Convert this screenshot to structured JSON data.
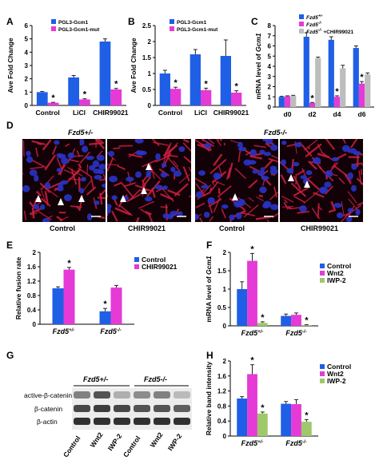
{
  "colors": {
    "blue": "#1f5fe6",
    "magenta": "#e53ad6",
    "green": "#9fc86a",
    "grey": "#bdbdbd",
    "err": "#222222",
    "stain_red": "#d02040",
    "stain_blue": "#2a33c8"
  },
  "panels": {
    "A": {
      "letter": "A"
    },
    "B": {
      "letter": "B"
    },
    "C": {
      "letter": "C"
    },
    "D": {
      "letter": "D",
      "group_left": "Fzd5+/-",
      "group_right": "Fzd5-/-",
      "captions": [
        "Control",
        "CHIR99021",
        "Control",
        "CHIR99021"
      ]
    },
    "E": {
      "letter": "E"
    },
    "F": {
      "letter": "F"
    },
    "G": {
      "letter": "G",
      "group_left": "Fzd5+/-",
      "group_right": "Fzd5-/-",
      "rows": [
        "active-β-catenin",
        "β-catenin",
        "β-actin"
      ],
      "lanes": [
        "Control",
        "Wnt2",
        "IWP-2",
        "Control",
        "Wnt2",
        "IWP-2"
      ]
    },
    "H": {
      "letter": "H"
    }
  },
  "chart_data": [
    {
      "panel": "A",
      "type": "bar",
      "ylabel": "Ave Fold Change",
      "ylim": [
        0,
        6
      ],
      "yticks": [
        0,
        1,
        2,
        3,
        4,
        5,
        6
      ],
      "categories": [
        "Control",
        "LiCl",
        "CHIR99021"
      ],
      "series": [
        {
          "name": "PGL3-Gcm1",
          "color": "blue",
          "values": [
            1.0,
            2.1,
            4.8
          ],
          "err": [
            0.05,
            0.15,
            0.2
          ]
        },
        {
          "name": "PGL3-Gcm1-mut",
          "color": "magenta",
          "values": [
            0.2,
            0.45,
            1.2
          ],
          "err": [
            0.03,
            0.05,
            0.08
          ]
        }
      ],
      "stars": [
        0,
        1,
        2
      ],
      "legend": "top-left"
    },
    {
      "panel": "B",
      "type": "bar",
      "ylabel": "Ave Fold Change",
      "ylim": [
        0,
        2.5
      ],
      "yticks": [
        0,
        0.5,
        1,
        1.5,
        2,
        2.5
      ],
      "categories": [
        "Control",
        "LiCl",
        "CHIR99021"
      ],
      "series": [
        {
          "name": "PGL3-Gcm1",
          "color": "blue",
          "values": [
            1.0,
            1.6,
            1.55
          ],
          "err": [
            0.1,
            0.15,
            0.5
          ]
        },
        {
          "name": "PGL3-Gcm1-mut",
          "color": "magenta",
          "values": [
            0.52,
            0.48,
            0.4
          ],
          "err": [
            0.05,
            0.06,
            0.06
          ]
        }
      ],
      "stars": [
        0,
        1,
        2
      ],
      "legend": "top-left"
    },
    {
      "panel": "C",
      "type": "bar",
      "ylabel": "mRNA level of Gcm1",
      "ylim": [
        0,
        8
      ],
      "yticks": [
        0,
        1,
        2,
        3,
        4,
        5,
        6,
        7,
        8
      ],
      "categories": [
        "d0",
        "d2",
        "d4",
        "d6"
      ],
      "series": [
        {
          "name": "Fzd5+/-",
          "color": "blue",
          "values": [
            1.0,
            6.9,
            6.6,
            5.8
          ],
          "err": [
            0.05,
            0.4,
            0.3,
            0.2
          ]
        },
        {
          "name": "Fzd5-/-",
          "color": "magenta",
          "values": [
            1.05,
            0.4,
            1.0,
            2.3
          ],
          "err": [
            0.05,
            0.05,
            0.1,
            0.2
          ]
        },
        {
          "name": "Fzd5-/- +CHIR99021",
          "color": "grey",
          "values": [
            1.1,
            4.8,
            3.8,
            3.2
          ],
          "err": [
            0.05,
            0.1,
            0.3,
            0.15
          ]
        }
      ],
      "stars": [
        1,
        2,
        3
      ],
      "legend": "top-left"
    },
    {
      "panel": "E",
      "type": "bar",
      "ylabel": "Relative fusion rate",
      "ylim": [
        0,
        2
      ],
      "yticks": [
        0,
        0.4,
        0.8,
        1.2,
        1.6,
        2
      ],
      "categories": [
        "Fzd5+/-",
        "Fzd5-/-"
      ],
      "series": [
        {
          "name": "Control",
          "color": "blue",
          "values": [
            1.0,
            0.36
          ],
          "err": [
            0.04,
            0.08
          ]
        },
        {
          "name": "CHIR99021",
          "color": "magenta",
          "values": [
            1.52,
            1.02
          ],
          "err": [
            0.06,
            0.06
          ]
        }
      ],
      "stars": [
        [
          0,
          1
        ],
        [
          1,
          0
        ]
      ],
      "legend": "top-right"
    },
    {
      "panel": "F",
      "type": "bar",
      "ylabel": "mRNA level of Gcm1",
      "ylim": [
        0,
        2
      ],
      "yticks": [
        0,
        0.5,
        1,
        1.5,
        2
      ],
      "categories": [
        "Fzd5+/-",
        "Fzd5-/-"
      ],
      "series": [
        {
          "name": "Control",
          "color": "blue",
          "values": [
            1.0,
            0.27
          ],
          "err": [
            0.2,
            0.05
          ]
        },
        {
          "name": "Wnt2",
          "color": "magenta",
          "values": [
            1.77,
            0.3
          ],
          "err": [
            0.2,
            0.05
          ]
        },
        {
          "name": "IWP-2",
          "color": "green",
          "values": [
            0.08,
            0.02
          ],
          "err": [
            0.03,
            0.01
          ]
        }
      ],
      "stars": [
        [
          0,
          1
        ],
        [
          0,
          2
        ],
        [
          1,
          2
        ]
      ],
      "legend": "top-right"
    },
    {
      "panel": "H",
      "type": "bar",
      "ylabel": "Relative band intensity",
      "ylim": [
        0,
        2
      ],
      "yticks": [
        0,
        0.4,
        0.8,
        1.2,
        1.6,
        2
      ],
      "categories": [
        "Fzd5+/-",
        "Fzd5-/-"
      ],
      "series": [
        {
          "name": "Control",
          "color": "blue",
          "values": [
            1.0,
            0.86
          ],
          "err": [
            0.05,
            0.06
          ]
        },
        {
          "name": "Wnt2",
          "color": "magenta",
          "values": [
            1.65,
            0.85
          ],
          "err": [
            0.25,
            0.12
          ]
        },
        {
          "name": "IWP-2",
          "color": "green",
          "values": [
            0.6,
            0.38
          ],
          "err": [
            0.04,
            0.06
          ]
        }
      ],
      "stars": [
        [
          0,
          1
        ],
        [
          0,
          2
        ],
        [
          1,
          2
        ]
      ],
      "legend": "top-right"
    }
  ]
}
